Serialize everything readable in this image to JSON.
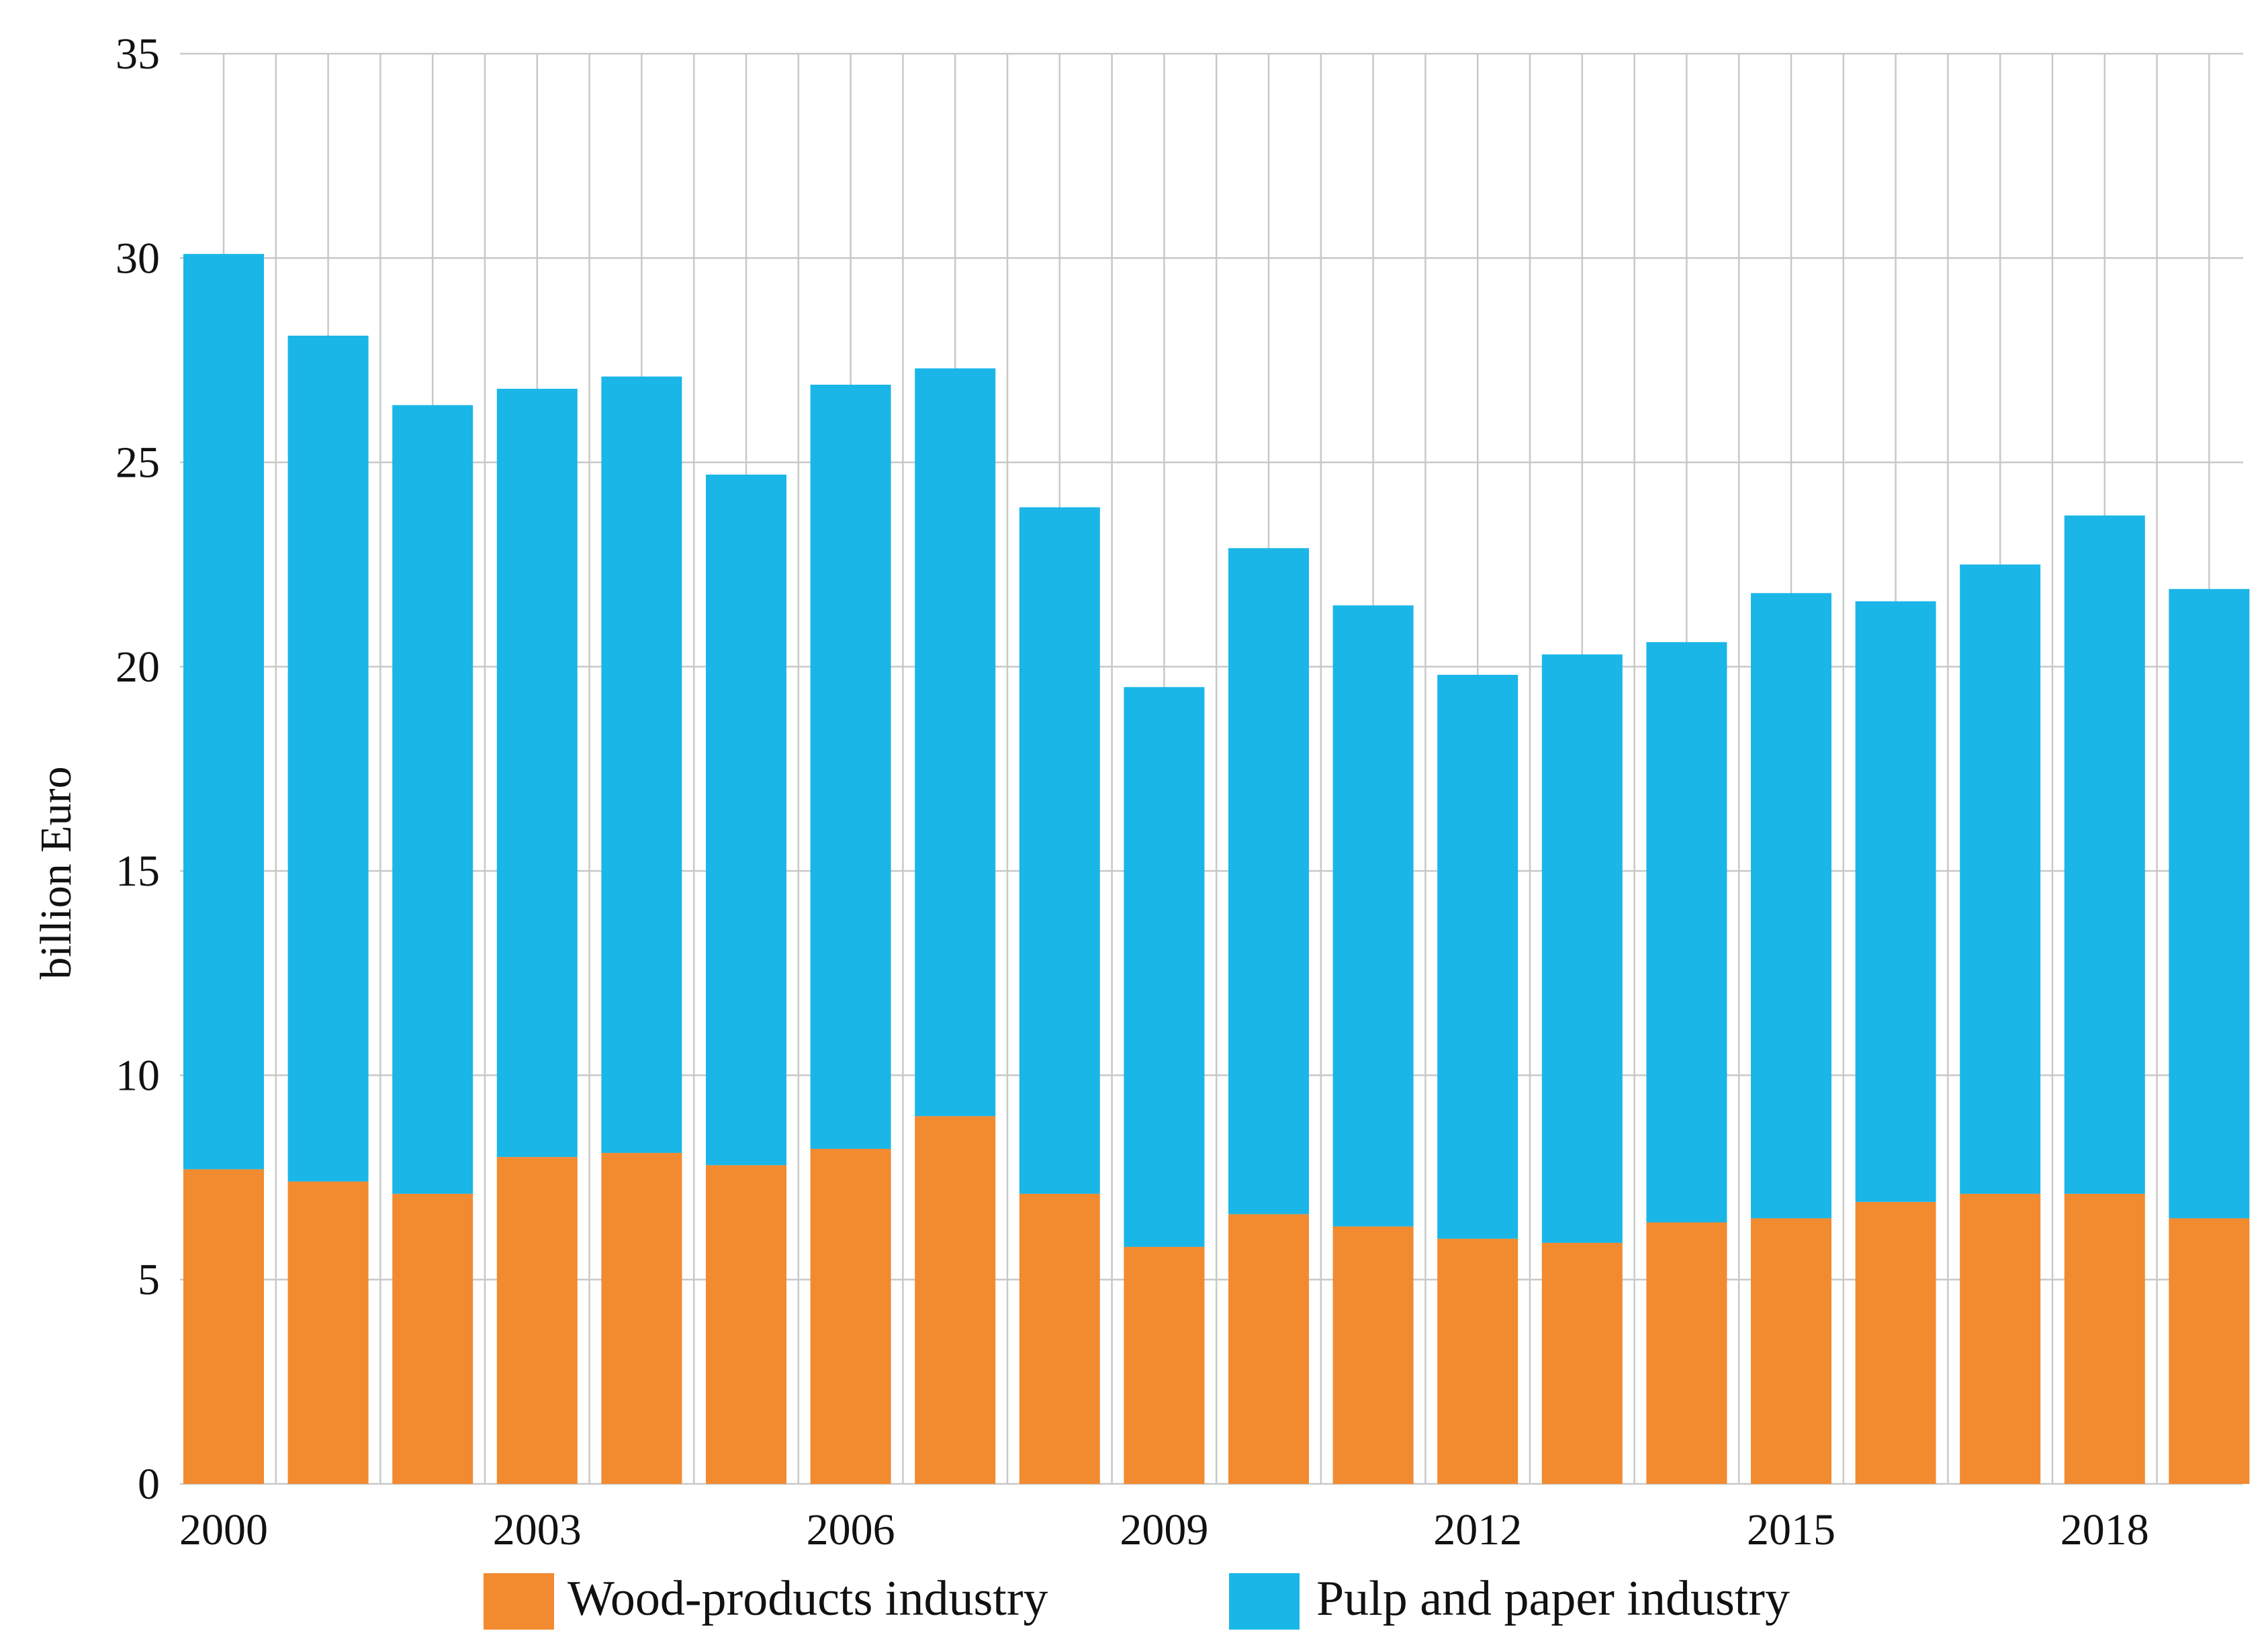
{
  "chart_data": {
    "type": "bar",
    "stacked": true,
    "title": "",
    "xlabel": "",
    "ylabel": "billion Euro",
    "ylim": [
      0,
      35
    ],
    "yticks": [
      "0",
      "5",
      "10",
      "15",
      "20",
      "25",
      "30",
      "35"
    ],
    "grid": true,
    "legend_position": "bottom",
    "categories": [
      "2000",
      "2001",
      "2002",
      "2003",
      "2004",
      "2005",
      "2006",
      "2007",
      "2008",
      "2009",
      "2010",
      "2011",
      "2012",
      "2013",
      "2014",
      "2015",
      "2016",
      "2017",
      "2018",
      "2019"
    ],
    "xtick_labels": [
      {
        "index": 0,
        "label": "2000"
      },
      {
        "index": 3,
        "label": "2003"
      },
      {
        "index": 6,
        "label": "2006"
      },
      {
        "index": 9,
        "label": "2009"
      },
      {
        "index": 12,
        "label": "2012"
      },
      {
        "index": 15,
        "label": "2015"
      },
      {
        "index": 18,
        "label": "2018"
      }
    ],
    "series": [
      {
        "name": "Wood-products industry",
        "color": "#F28A30",
        "values": [
          7.7,
          7.4,
          7.1,
          8.0,
          8.1,
          7.8,
          8.2,
          9.0,
          7.1,
          5.8,
          6.6,
          6.3,
          6.0,
          5.9,
          6.4,
          6.5,
          6.9,
          7.1,
          7.1,
          6.5
        ]
      },
      {
        "name": "Pulp and paper industry",
        "color": "#1AB6E8",
        "values": [
          22.4,
          20.7,
          19.3,
          18.8,
          19.0,
          16.9,
          18.7,
          18.3,
          16.8,
          13.7,
          16.3,
          15.2,
          13.8,
          14.4,
          14.2,
          15.3,
          14.7,
          15.4,
          16.6,
          15.4
        ]
      }
    ]
  }
}
